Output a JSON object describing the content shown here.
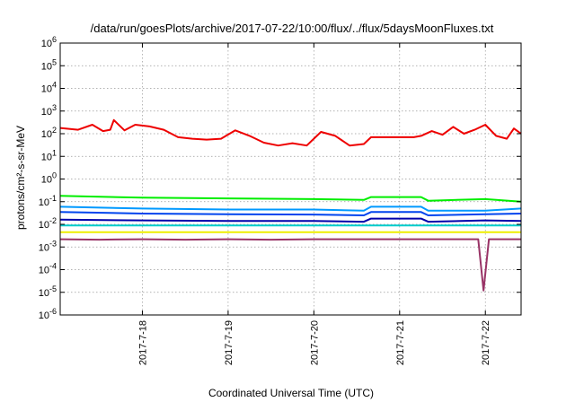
{
  "chart_data": {
    "type": "line",
    "title": "/data/run/goesPlots/archive/2017-07-22/10:00/flux/../flux/5daysMoonFluxes.txt",
    "xlabel": "Coordinated Universal Time (UTC)",
    "ylabel": "protons/cm²-s-sr-MeV",
    "y_scale": "log",
    "ylim": [
      1e-06,
      1000000.0
    ],
    "xlim": [
      "2017-07-17T01:00",
      "2017-07-22T10:00"
    ],
    "x_tick_labels": [
      "2017-7-18",
      "2017-7-19",
      "2017-7-20",
      "2017-7-21",
      "2017-7-22"
    ],
    "x_tick_values": [
      "2017-07-18T00:00",
      "2017-07-19T00:00",
      "2017-07-20T00:00",
      "2017-07-21T00:00",
      "2017-07-22T00:00"
    ],
    "y_ticks": [
      {
        "value": 1e-06,
        "base": "10",
        "exp": "-6"
      },
      {
        "value": 1e-05,
        "base": "10",
        "exp": "-5"
      },
      {
        "value": 0.0001,
        "base": "10",
        "exp": "-4"
      },
      {
        "value": 0.001,
        "base": "10",
        "exp": "-3"
      },
      {
        "value": 0.01,
        "base": "10",
        "exp": "-2"
      },
      {
        "value": 0.1,
        "base": "10",
        "exp": "-1"
      },
      {
        "value": 1,
        "base": "10",
        "exp": "0"
      },
      {
        "value": 10,
        "base": "10",
        "exp": "1"
      },
      {
        "value": 100,
        "base": "10",
        "exp": "2"
      },
      {
        "value": 1000,
        "base": "10",
        "exp": "3"
      },
      {
        "value": 10000,
        "base": "10",
        "exp": "4"
      },
      {
        "value": 100000,
        "base": "10",
        "exp": "5"
      },
      {
        "value": 1000000,
        "base": "10",
        "exp": "6"
      }
    ],
    "grid": true,
    "legend": "none",
    "series": [
      {
        "color": "#ee0000",
        "x": [
          "2017-07-17T01:00",
          "2017-07-17T06:00",
          "2017-07-17T10:00",
          "2017-07-17T13:00",
          "2017-07-17T15:00",
          "2017-07-17T16:00",
          "2017-07-17T19:00",
          "2017-07-17T22:00",
          "2017-07-18T02:00",
          "2017-07-18T06:00",
          "2017-07-18T10:00",
          "2017-07-18T14:00",
          "2017-07-18T18:00",
          "2017-07-18T22:00",
          "2017-07-19T02:00",
          "2017-07-19T06:00",
          "2017-07-19T10:00",
          "2017-07-19T14:00",
          "2017-07-19T18:00",
          "2017-07-19T22:00",
          "2017-07-20T02:00",
          "2017-07-20T06:00",
          "2017-07-20T10:00",
          "2017-07-20T14:00",
          "2017-07-20T16:00",
          "2017-07-20T22:00",
          "2017-07-21T04:00",
          "2017-07-21T06:00",
          "2017-07-21T09:00",
          "2017-07-21T12:00",
          "2017-07-21T15:00",
          "2017-07-21T18:00",
          "2017-07-21T21:00",
          "2017-07-22T00:00",
          "2017-07-22T03:00",
          "2017-07-22T06:00",
          "2017-07-22T08:00",
          "2017-07-22T10:00"
        ],
        "y": [
          180,
          150,
          250,
          130,
          150,
          400,
          140,
          250,
          210,
          150,
          70,
          60,
          55,
          60,
          140,
          80,
          40,
          30,
          38,
          30,
          120,
          80,
          30,
          35,
          70,
          70,
          70,
          80,
          130,
          90,
          200,
          100,
          150,
          250,
          80,
          60,
          170,
          100
        ]
      },
      {
        "color": "#00ee00",
        "x": [
          "2017-07-17T01:00",
          "2017-07-18T00:00",
          "2017-07-19T00:00",
          "2017-07-20T00:00",
          "2017-07-20T14:00",
          "2017-07-20T16:00",
          "2017-07-21T06:00",
          "2017-07-21T08:00",
          "2017-07-22T00:00",
          "2017-07-22T10:00"
        ],
        "y": [
          0.18,
          0.15,
          0.14,
          0.13,
          0.12,
          0.16,
          0.16,
          0.11,
          0.13,
          0.1
        ]
      },
      {
        "color": "#0099ff",
        "x": [
          "2017-07-17T01:00",
          "2017-07-18T00:00",
          "2017-07-19T00:00",
          "2017-07-20T00:00",
          "2017-07-20T14:00",
          "2017-07-20T16:00",
          "2017-07-21T06:00",
          "2017-07-21T08:00",
          "2017-07-22T00:00",
          "2017-07-22T10:00"
        ],
        "y": [
          0.06,
          0.05,
          0.045,
          0.045,
          0.04,
          0.06,
          0.06,
          0.04,
          0.04,
          0.05
        ]
      },
      {
        "color": "#0044ee",
        "x": [
          "2017-07-17T01:00",
          "2017-07-18T00:00",
          "2017-07-19T00:00",
          "2017-07-20T00:00",
          "2017-07-20T14:00",
          "2017-07-20T16:00",
          "2017-07-21T06:00",
          "2017-07-21T08:00",
          "2017-07-22T00:00",
          "2017-07-22T10:00"
        ],
        "y": [
          0.035,
          0.03,
          0.028,
          0.027,
          0.025,
          0.035,
          0.035,
          0.025,
          0.028,
          0.03
        ]
      },
      {
        "color": "#0000aa",
        "x": [
          "2017-07-17T01:00",
          "2017-07-18T00:00",
          "2017-07-19T00:00",
          "2017-07-20T00:00",
          "2017-07-20T14:00",
          "2017-07-20T16:00",
          "2017-07-21T06:00",
          "2017-07-21T08:00",
          "2017-07-22T00:00",
          "2017-07-22T10:00"
        ],
        "y": [
          0.016,
          0.015,
          0.014,
          0.014,
          0.013,
          0.018,
          0.018,
          0.013,
          0.015,
          0.014
        ]
      },
      {
        "color": "#00cccc",
        "x": [
          "2017-07-17T01:00",
          "2017-07-18T00:00",
          "2017-07-19T00:00",
          "2017-07-20T00:00",
          "2017-07-20T14:00",
          "2017-07-20T16:00",
          "2017-07-21T06:00",
          "2017-07-21T08:00",
          "2017-07-22T00:00",
          "2017-07-22T10:00"
        ],
        "y": [
          0.009,
          0.009,
          0.009,
          0.009,
          0.009,
          0.009,
          0.009,
          0.009,
          0.009,
          0.009
        ]
      },
      {
        "color": "#eeee00",
        "x": [
          "2017-07-17T01:00",
          "2017-07-18T00:00",
          "2017-07-19T00:00",
          "2017-07-20T00:00",
          "2017-07-21T00:00",
          "2017-07-22T00:00",
          "2017-07-22T10:00"
        ],
        "y": [
          0.0045,
          0.0045,
          0.0045,
          0.0045,
          0.0045,
          0.0045,
          0.0045
        ]
      },
      {
        "color": "#993366",
        "x": [
          "2017-07-17T01:00",
          "2017-07-17T12:00",
          "2017-07-18T00:00",
          "2017-07-18T12:00",
          "2017-07-19T00:00",
          "2017-07-19T12:00",
          "2017-07-20T00:00",
          "2017-07-20T12:00",
          "2017-07-21T00:00",
          "2017-07-21T12:00",
          "2017-07-21T22:00",
          "2017-07-21T23:30",
          "2017-07-22T01:00",
          "2017-07-22T10:00"
        ],
        "y": [
          0.0022,
          0.0021,
          0.0022,
          0.0021,
          0.0022,
          0.0021,
          0.0022,
          0.0022,
          0.0022,
          0.0022,
          0.0022,
          1.2e-05,
          0.0022,
          0.0022
        ]
      }
    ]
  }
}
